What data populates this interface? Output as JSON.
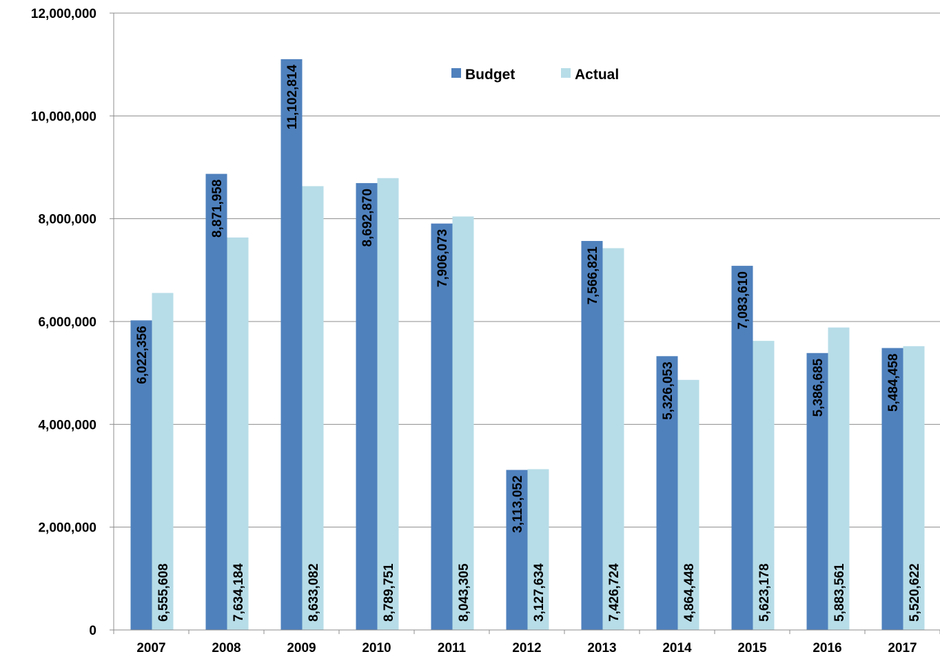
{
  "chart_data": {
    "type": "bar",
    "categories": [
      "2007",
      "2008",
      "2009",
      "2010",
      "2011",
      "2012",
      "2013",
      "2014",
      "2015",
      "2016",
      "2017"
    ],
    "series": [
      {
        "name": "Budget",
        "color": "#4f81bd",
        "values": [
          6022356,
          8871958,
          11102814,
          8692870,
          7906073,
          3113052,
          7566821,
          5326053,
          7083610,
          5386685,
          5484458
        ],
        "labels": [
          "6,022,356",
          "8,871,958",
          "11,102,814",
          "8,692,870",
          "7,906,073",
          "3,113,052",
          "7,566,821",
          "5,326,053",
          "7,083,610",
          "5,386,685",
          "5,484,458"
        ]
      },
      {
        "name": "Actual",
        "color": "#b7dde8",
        "values": [
          6555608,
          7634184,
          8633082,
          8789751,
          8043305,
          3127634,
          7426724,
          4864448,
          5623178,
          5883561,
          5520622
        ],
        "labels": [
          "6,555,608",
          "7,634,184",
          "8,633,082",
          "8,789,751",
          "8,043,305",
          "3,127,634",
          "7,426,724",
          "4,864,448",
          "5,623,178",
          "5,883,561",
          "5,520,622"
        ]
      }
    ],
    "ylim": [
      0,
      12000000
    ],
    "yticks": [
      0,
      2000000,
      4000000,
      6000000,
      8000000,
      10000000,
      12000000
    ],
    "ytick_labels": [
      "0",
      "2,000,000",
      "4,000,000",
      "6,000,000",
      "8,000,000",
      "10,000,000",
      "12,000,000"
    ],
    "grid": true,
    "legend": "top-center",
    "title": "",
    "xlabel": "",
    "ylabel": ""
  }
}
